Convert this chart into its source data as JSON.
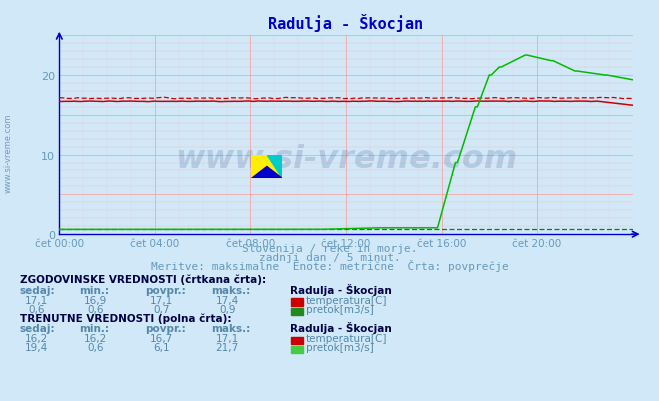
{
  "title": "Radulja - Škocjan",
  "title_color": "#0000cc",
  "bg_color": "#d0e8f8",
  "plot_bg_color": "#d0e8f8",
  "xlim": [
    0,
    288
  ],
  "ylim": [
    0,
    25
  ],
  "yticks": [
    0,
    10,
    20
  ],
  "xtick_labels": [
    "čet 00:00",
    "čet 04:00",
    "čet 08:00",
    "čet 12:00",
    "čet 16:00",
    "čet 20:00"
  ],
  "xtick_positions": [
    0,
    48,
    96,
    144,
    192,
    240
  ],
  "grid_color_major": "#ff9999",
  "grid_color_minor": "#ffbbbb",
  "subtitle1": "Slovenija / reke in morje.",
  "subtitle2": "zadnji dan / 5 minut.",
  "subtitle3": "Meritve: maksimalne  Enote: metrične  Črta: povprečje",
  "text_color": "#6699bb",
  "watermark_text": "www.si-vreme.com",
  "watermark_color": "#334488",
  "watermark_alpha": 0.18,
  "temp_hist_dashed_color": "#cc0000",
  "temp_curr_solid_color": "#cc0000",
  "flow_hist_dashed_color": "#008800",
  "flow_curr_solid_color": "#00bb00",
  "axis_color": "#0000cc",
  "table_bold_color": "#000044",
  "table_label_color": "#5588aa",
  "table_value_color": "#5588aa",
  "red_square_color": "#cc0000",
  "green_square_hist_color": "#228822",
  "green_square_curr_color": "#44cc44",
  "left_watermark_color": "#7799bb"
}
